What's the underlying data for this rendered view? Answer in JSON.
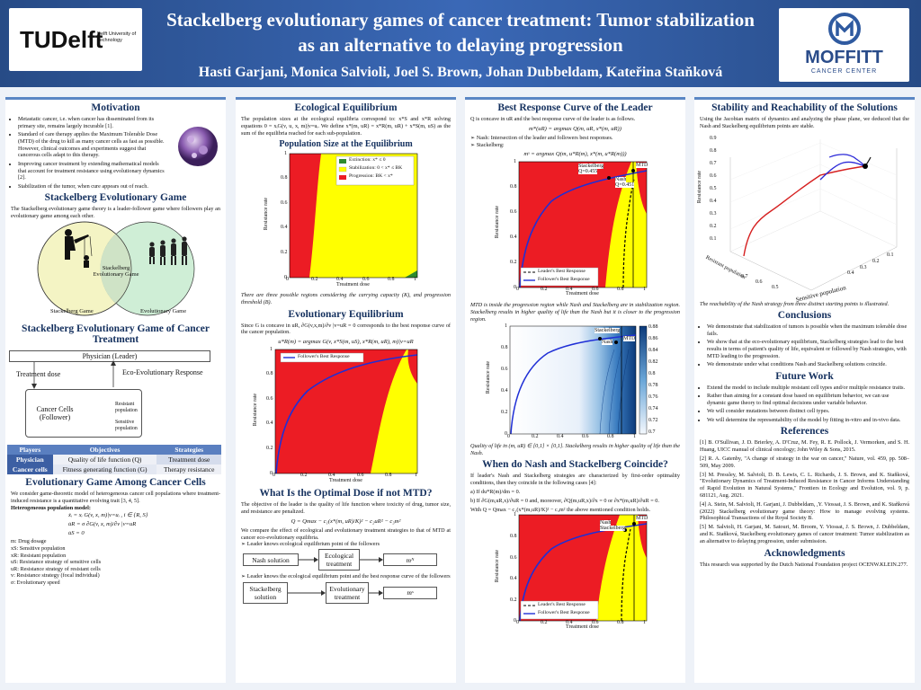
{
  "header": {
    "title": "Stackelberg evolutionary games of cancer treatment: Tumor stabilization as an alternative to delaying progression",
    "authors": "Hasti Garjani, Monica Salvioli, Joel S. Brown, Johan Dubbeldam, Kateřina Staňková",
    "tudelft_logo": "TUDelft",
    "tudelft_sub": "Delft University of Technology",
    "moffitt_logo": "MOFFITT",
    "moffitt_sub": "CANCER CENTER"
  },
  "col1": {
    "motivation_h": "Motivation",
    "motivation": [
      "Metastatic cancer, i.e. when cancer has disseminated from its primary site, remains largely incurable [1].",
      "Standard of care therapy applies the Maximum Tolerable Dose (MTD) of the drug to kill as many cancer cells as fast as possible. However, clinical outcomes and experiments suggest that cancerous cells adapt to this therapy.",
      "Improving cancer treatment by extending mathematical models that account for treatment resistance using evolutionary dynamics [2].",
      "Stabilization of the tumor, when cure appears out of reach."
    ],
    "seg_h": "Stackelberg Evolutionary Game",
    "seg_txt": "The Stackelberg evolutionary game theory is a leader-follower game where followers play an evolutionary game among each other.",
    "venn": {
      "left": "Stackelberg Game",
      "mid": "Stackelberg Evolutionary Game",
      "right": "Evolutionary Game"
    },
    "segc_h": "Stackelberg Evolutionary Game of Cancer Treatment",
    "diagram": {
      "leader": "Physician (Leader)",
      "dose": "Treatment dose",
      "response": "Eco-Evolutionary Response",
      "follower": "Cancer Cells (Follower)",
      "resistant": "Resistant population",
      "sensitive": "Sensitive population"
    },
    "table": {
      "headers": [
        "Players",
        "Objectives",
        "Strategies"
      ],
      "rows": [
        [
          "Physician",
          "Quality of life function (Q)",
          "Treatment dose"
        ],
        [
          "Cancer cells",
          "Fitness generating function (G)",
          "Therapy resistance"
        ]
      ]
    },
    "egc_h": "Evolutionary Game Among Cancer Cells",
    "egc_txt": "We consider game-theoretic model of heterogeneous cancer cell populations where treatment-induced resistance is a quantitative evolving trait [3, 4, 5].",
    "hpm": "Heterogeneous population model:",
    "eqs": [
      "ẋᵢ = xᵢ G(v, x, m)|v=uᵢ ,     i ∈ {R, S}",
      "u̇R = σ ∂G(v, x, m)/∂v |v=uR",
      "u̇S = 0"
    ],
    "vars": [
      "m: Drug dosage",
      "xS: Sensitive population",
      "xR: Resistant population",
      "uS: Resistance strategy of sensitive cells",
      "uR: Resistance strategy of resistant cells",
      "v: Resistance strategy (focal individual)",
      "σ: Evolutionary speed"
    ]
  },
  "col2": {
    "eco_h": "Ecological Equilibrium",
    "eco_txt": "The population sizes at the ecological equilibria correspond to: x*S and x*R solving equations 0 = xᵢG(v, u, x, m)|v=uᵢ. We define x*(m, uR) = x*R(m, uR) + x*S(m, uS) as the sum of the equilibria reached for each sub-population.",
    "ps_h": "Population Size at the Equilibrium",
    "legend": [
      "Extinction: x* ≤ 0",
      "Stabilization: 0 < x* ≤ BK",
      "Progression: BK < x*"
    ],
    "fig1_cap": "There are three possible regions considering the carrying capacity (K), and progression threshold (B).",
    "evo_h": "Evolutionary Equilibrium",
    "evo_txt": "Since G is concave in uR, ∂G(v,x,m)/∂v |v=uR = 0 corresponds to the best response curve of the cancer population.",
    "evo_eq": "u*R(m) = argmax G(v, x*S(m, uS), x*R(m, uR), m)|v=uR",
    "follower": "Follower's Best Response",
    "opt_h": "What Is the Optimal Dose if not MTD?",
    "opt_txt": "The objective of the leader is the quality of life function where toxicity of drug, tumor size, and resistance are penalized.",
    "opt_eq": "Q = Qmax − c₁(x*(m, uR)/K)² − c₂uR² − c₃m²",
    "opt_txt2": "We compare the effect of ecological and evolutionary treatment strategies to that of MTD at cancer eco-evolutionary equilibria.",
    "nash_b": "Leader knows ecological equilibrium point of the followers",
    "stack_b": "Leader knows the ecological equilibrium point and the best response curve of the followers",
    "flow": {
      "nash": "Nash solution",
      "eco": "Ecological treatment",
      "mN": "mᴺ",
      "stack": "Stackelberg solution",
      "evo": "Evolutionary treatment",
      "mS": "mˢ"
    },
    "xlabel": "Treatment dose",
    "ylabel": "Resistance rate"
  },
  "col3": {
    "brc_h": "Best Response Curve of the Leader",
    "brc_txt": "Q is concave in uR and the best response curve of the leader is as follows.",
    "brc_eq": "m*(uR) = argmax Q(m, uR, x*(m, uR))",
    "bul": [
      "Nash: Intersection of the leader and followers best responses.",
      "Stackelberg:"
    ],
    "stack_eq": "mˢ = argmax Q(m, u*R(m), x*(m, u*R(m)))",
    "f3": {
      "stack": "Stackelberg",
      "stack_q": "Q=0.455",
      "nash": "Nash",
      "nash_q": "Q=0.451",
      "mtd": "MTD"
    },
    "leader": "Leader's Best Response",
    "follower": "Follower's Best Response",
    "cap1": "MTD is inside the progression region while Nash and Stackelberg are in stabilization region. Stackelberg results in higher quality of life than the Nash but it is closer to the progression region.",
    "f4": {
      "stack": "Stackelberg",
      "nash": "Nash",
      "mtd": "MTD"
    },
    "cbar": [
      "0.88",
      "0.86",
      "0.84",
      "0.82",
      "0.8",
      "0.78",
      "0.76",
      "0.74",
      "0.72",
      "0.7"
    ],
    "cap2": "Quality of life in (m, uR) ∈ [0,1] × [0,1]. Stackelberg results in higher quality of life than the Nash.",
    "coin_h": "When do Nash and Stackelberg Coincide?",
    "coin_txt": "If leader's Nash and Stackelberg strategies are characterized by first-order optimality conditions, then they coincide in the following cases [4]:",
    "coin_a": "a)  If du*R(m)/dm = 0.",
    "coin_b": "b)  If ∂G(m,uR,x)/∂uR = 0 and, moreover, ∂Q(m,uR,x)/∂x = 0 or ∂x*(m,uR)/∂uR = 0.",
    "coin_with": "With Q = Qmax − c₁(x*(m,uR)/K)² − c₃m² the above mentioned condition holds.",
    "f5": {
      "nash": "Nash",
      "stack": "Stackelberg",
      "mtd": "MTD"
    },
    "xlabel": "Treatment dose",
    "ylabel": "Resistance rate"
  },
  "col4": {
    "sr_h": "Stability and Reachability of the Solutions",
    "sr_txt": "Using the Jacobian matrix of dynamics and analyzing the phase plane, we deduced that the Nash and Stackelberg equilibrium points are stable.",
    "axes": {
      "z": "Resistance rate",
      "y": "Resistant population",
      "x": "Sensitive population"
    },
    "sr_cap": "The reachability of the Nash strategy from three distinct starting points is illustrated.",
    "concl_h": "Conclusions",
    "concl": [
      "We demonstrate that stabilization of tumors is possible when the maximum tolerable dose fails.",
      "We show that at the eco-evolutionary equilibrium, Stackelberg strategies lead to the best results in terms of patient's quality of life, equivalent or followed by Nash strategies, with MTD leading to the progression.",
      "We demonstrate under what conditions Nash and Stackelberg solutions coincide."
    ],
    "fw_h": "Future Work",
    "fw": [
      "Extend the model to include multiple resistant cell types and/or multiple resistance traits.",
      "Rather than aiming for a constant dose based on equilibrium behavior, we can use dynamic game theory to find optimal decisions under variable behavior.",
      "We will consider mutations between distinct cell types.",
      "We will determine the representability of the model by fitting in-vitro and in-vivo data."
    ],
    "ref_h": "References",
    "refs": [
      "[1] B. O'Sullivan, J. D. Brierley, A. D'Cruz, M. Fey, R. E. Pollock, J. Vermorken, and S. H. Huang, UICC manual of clinical oncology; John Wiley & Sons, 2015.",
      "[2] R. A. Gatenby, \"A change of strategy in the war on cancer,\" Nature, vol. 459, pp. 508–509, May 2009.",
      "[3] M. Pressley, M. Salvioli, D. B. Lewis, C. L. Richards, J. S. Brown, and K. Staňková, \"Evolutionary Dynamics of Treatment-Induced Resistance in Cancer Informs Understanding of Rapid Evolution in Natural Systems,\" Frontiers in Ecology and Evolution, vol. 9, p. 681121, Aug. 2021.",
      "[4] A. Stein, M. Salvioli, H. Garjani, J. Dubbeldam, ,Y. Viossat, J. S. Brown, and K. Staňková (2022) Stackelberg evolutionary game theory: How to manage evolving systems. Philosophical Transactions of the Royal Society B.",
      "[5] M. Salvioli, H. Garjani, M. Satouri, M. Broom, Y. Viossat, J. S. Brown, J. Dubbeldam, and K. Staňková, Stackelberg evolutionary games of cancer treatment: Tumor stabilization as an alternative to delaying progression, under submission."
    ],
    "ack_h": "Acknowledgments",
    "ack": "This research was supported by the Dutch National Foundation project OCENW.KLEIN.277."
  },
  "colors": {
    "header": "#2f5aa0",
    "red": "#ec1c24",
    "yellow": "#ffff00",
    "green": "#2e8b2e",
    "blue": "#1f2fd6",
    "navy": "#14305e"
  }
}
